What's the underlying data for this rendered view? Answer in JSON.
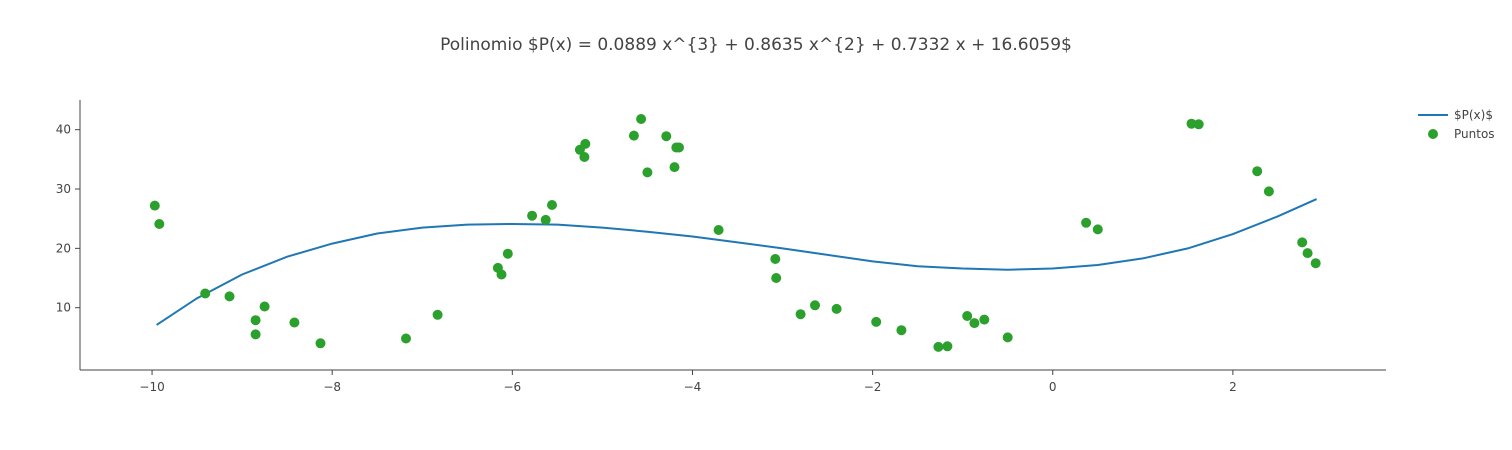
{
  "chart_data": {
    "type": "scatter",
    "title": "Polinomio $P(x) = 0.0889 x^{3} + 0.8635 x^{2} + 0.7332 x + 16.6059$",
    "xlabel": "",
    "ylabel": "",
    "xlim": [
      -10.8,
      3.7
    ],
    "ylim": [
      -0.5,
      45
    ],
    "x_ticks": [
      -10,
      -8,
      -6,
      -4,
      -2,
      0,
      2
    ],
    "x_tick_labels": [
      "−10",
      "−8",
      "−6",
      "−4",
      "−2",
      "0",
      "2"
    ],
    "y_ticks": [
      10,
      20,
      30,
      40
    ],
    "y_tick_labels": [
      "10",
      "20",
      "30",
      "40"
    ],
    "grid": false,
    "legend": {
      "position": "top-right"
    },
    "series": [
      {
        "name": "$P(x)$",
        "kind": "line",
        "color": "#1f77b4",
        "x": [
          -9.95,
          -9.5,
          -9.0,
          -8.5,
          -8.0,
          -7.5,
          -7.0,
          -6.5,
          -6.0,
          -5.5,
          -5.0,
          -4.5,
          -4.0,
          -3.5,
          -3.0,
          -2.5,
          -2.0,
          -1.5,
          -1.0,
          -0.5,
          0.0,
          0.5,
          1.0,
          1.5,
          2.0,
          2.5,
          2.93
        ],
        "y": [
          7.1,
          11.6,
          15.6,
          18.6,
          20.8,
          22.5,
          23.5,
          24.0,
          24.1,
          24.0,
          23.5,
          22.8,
          22.0,
          21.0,
          20.0,
          18.9,
          17.8,
          17.0,
          16.6,
          16.4,
          16.6,
          17.2,
          18.3,
          20.0,
          22.4,
          25.4,
          28.3
        ]
      },
      {
        "name": "Puntos",
        "kind": "markers",
        "color": "#2ca02c",
        "x": [
          -9.97,
          -9.92,
          -9.41,
          -9.14,
          -8.85,
          -8.85,
          -8.75,
          -8.42,
          -8.13,
          -7.18,
          -6.83,
          -6.16,
          -6.12,
          -6.05,
          -5.78,
          -5.63,
          -5.56,
          -5.25,
          -5.2,
          -5.19,
          -4.65,
          -4.57,
          -4.5,
          -4.29,
          -4.2,
          -4.18,
          -4.15,
          -3.71,
          -3.08,
          -3.07,
          -2.8,
          -2.64,
          -2.4,
          -1.96,
          -1.68,
          -1.27,
          -1.17,
          -0.95,
          -0.87,
          -0.76,
          -0.5,
          0.37,
          0.5,
          1.54,
          1.62,
          2.27,
          2.4,
          2.77,
          2.83,
          2.92
        ],
        "y": [
          27.2,
          24.1,
          12.4,
          11.9,
          7.9,
          5.5,
          10.2,
          7.5,
          4.0,
          4.8,
          8.8,
          16.7,
          15.6,
          19.1,
          25.5,
          24.8,
          27.3,
          36.6,
          35.4,
          37.6,
          39.0,
          41.8,
          32.8,
          38.9,
          33.7,
          37.0,
          37.0,
          23.1,
          18.2,
          15.0,
          8.9,
          10.4,
          9.8,
          7.6,
          6.2,
          3.4,
          3.5,
          8.6,
          7.4,
          8.0,
          5.0,
          24.3,
          23.2,
          41.0,
          40.9,
          33.0,
          29.6,
          21.0,
          19.2,
          17.5
        ]
      }
    ]
  }
}
